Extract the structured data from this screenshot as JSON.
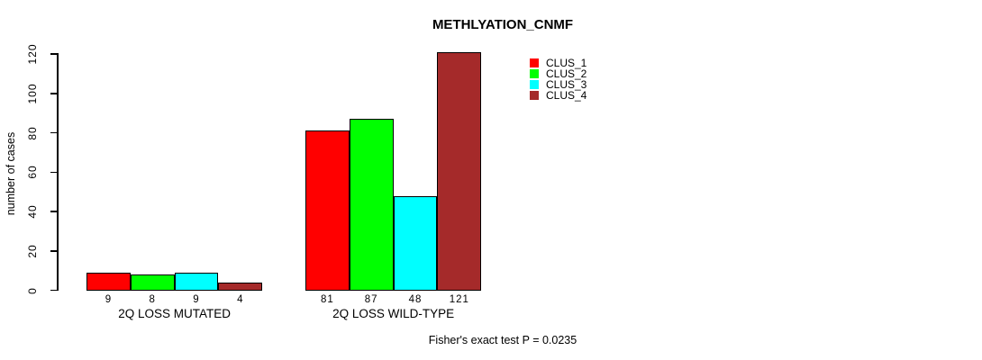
{
  "chart_data": {
    "type": "bar",
    "title": "METHLYATION_CNMF",
    "xlabel": "",
    "ylabel": "number of cases",
    "ylim": [
      0,
      120
    ],
    "yticks": [
      0,
      20,
      40,
      60,
      80,
      100,
      120
    ],
    "grid": false,
    "legend_position": "top-right-inside",
    "bar_value_labels": true,
    "categories": [
      "2Q LOSS MUTATED",
      "2Q LOSS WILD-TYPE"
    ],
    "series": [
      {
        "name": "CLUS_1",
        "color": "#ff0000",
        "values": [
          9,
          81
        ]
      },
      {
        "name": "CLUS_2",
        "color": "#00ff00",
        "values": [
          8,
          87
        ]
      },
      {
        "name": "CLUS_3",
        "color": "#00ffff",
        "values": [
          9,
          48
        ]
      },
      {
        "name": "CLUS_4",
        "color": "#a52a2a",
        "values": [
          4,
          121
        ]
      }
    ],
    "annotation": "Fisher's exact test P = 0.0235"
  }
}
